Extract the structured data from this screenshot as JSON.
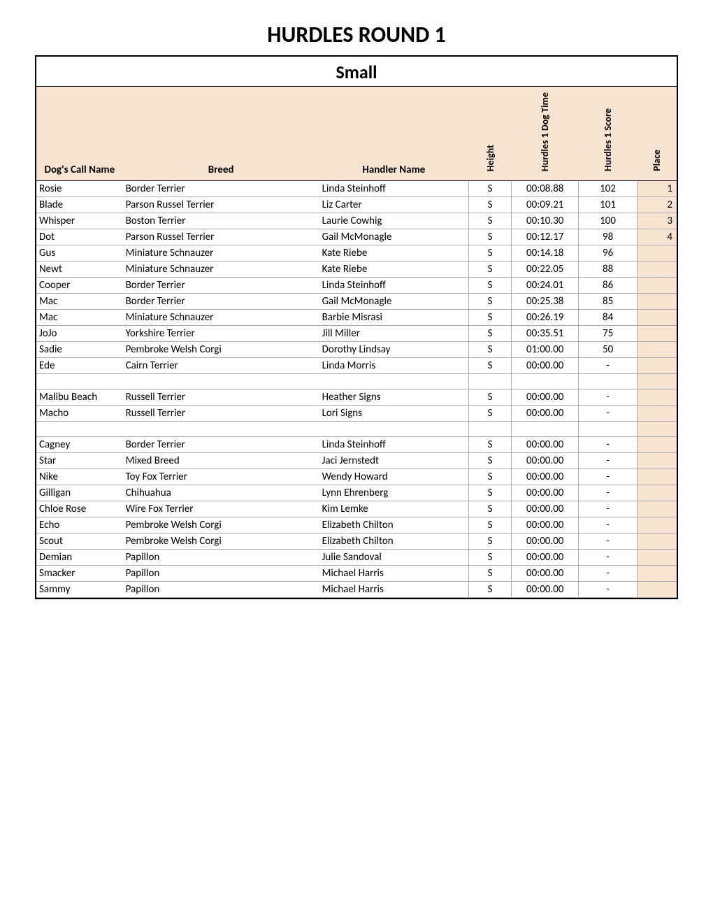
{
  "title": "HURDLES ROUND 1",
  "section": "Small",
  "columns": {
    "name": "Dog's Call Name",
    "breed": "Breed",
    "handler": "Handler Name",
    "height": "Height",
    "time": "Hurdles 1 Dog Time",
    "score": "Hurdles 1 Score",
    "place": "Place"
  },
  "colors": {
    "header_bg": "#f7e3d2",
    "place_bg": "#f7e3d2",
    "border": "#000000",
    "row_border": "#aaaaaa",
    "background": "#ffffff"
  },
  "rows": [
    {
      "name": "Rosie",
      "breed": "Border Terrier",
      "handler": "Linda Steinhoff",
      "height": "S",
      "time": "00:08.88",
      "score": "102",
      "place": "1"
    },
    {
      "name": "Blade",
      "breed": "Parson Russel Terrier",
      "handler": "Liz Carter",
      "height": "S",
      "time": "00:09.21",
      "score": "101",
      "place": "2"
    },
    {
      "name": "Whisper",
      "breed": "Boston Terrier",
      "handler": "Laurie Cowhig",
      "height": "S",
      "time": "00:10.30",
      "score": "100",
      "place": "3"
    },
    {
      "name": "Dot",
      "breed": "Parson Russel Terrier",
      "handler": "Gail McMonagle",
      "height": "S",
      "time": "00:12.17",
      "score": "98",
      "place": "4"
    },
    {
      "name": "Gus",
      "breed": "Miniature Schnauzer",
      "handler": "Kate Riebe",
      "height": "S",
      "time": "00:14.18",
      "score": "96",
      "place": ""
    },
    {
      "name": "Newt",
      "breed": "Miniature Schnauzer",
      "handler": "Kate Riebe",
      "height": "S",
      "time": "00:22.05",
      "score": "88",
      "place": ""
    },
    {
      "name": "Cooper",
      "breed": "Border Terrier",
      "handler": "Linda Steinhoff",
      "height": "S",
      "time": "00:24.01",
      "score": "86",
      "place": ""
    },
    {
      "name": "Mac",
      "breed": "Border Terrier",
      "handler": "Gail McMonagle",
      "height": "S",
      "time": "00:25.38",
      "score": "85",
      "place": ""
    },
    {
      "name": "Mac",
      "breed": "Miniature Schnauzer",
      "handler": "Barbie Misrasi",
      "height": "S",
      "time": "00:26.19",
      "score": "84",
      "place": ""
    },
    {
      "name": "JoJo",
      "breed": "Yorkshire Terrier",
      "handler": "Jill Miller",
      "height": "S",
      "time": "00:35.51",
      "score": "75",
      "place": ""
    },
    {
      "name": "Sadie",
      "breed": "Pembroke Welsh Corgi",
      "handler": "Dorothy Lindsay",
      "height": "S",
      "time": "01:00.00",
      "score": "50",
      "place": ""
    },
    {
      "name": "Ede",
      "breed": "Cairn Terrier",
      "handler": "Linda Morris",
      "height": "S",
      "time": "00:00.00",
      "score": "-",
      "place": ""
    },
    {
      "name": "",
      "breed": "",
      "handler": "",
      "height": "",
      "time": "",
      "score": "",
      "place": ""
    },
    {
      "name": "Malibu Beach",
      "breed": "Russell Terrier",
      "handler": "Heather Signs",
      "height": "S",
      "time": "00:00.00",
      "score": "-",
      "place": ""
    },
    {
      "name": "Macho",
      "breed": "Russell Terrier",
      "handler": "Lori Signs",
      "height": "S",
      "time": "00:00.00",
      "score": "-",
      "place": ""
    },
    {
      "name": "",
      "breed": "",
      "handler": "",
      "height": "",
      "time": "",
      "score": "",
      "place": ""
    },
    {
      "name": "Cagney",
      "breed": "Border Terrier",
      "handler": "Linda Steinhoff",
      "height": "S",
      "time": "00:00.00",
      "score": "-",
      "place": ""
    },
    {
      "name": "Star",
      "breed": "Mixed Breed",
      "handler": "Jaci Jernstedt",
      "height": "S",
      "time": "00:00.00",
      "score": "-",
      "place": ""
    },
    {
      "name": "Nike",
      "breed": "Toy Fox Terrier",
      "handler": "Wendy Howard",
      "height": "S",
      "time": "00:00.00",
      "score": "-",
      "place": ""
    },
    {
      "name": "Gilligan",
      "breed": "Chihuahua",
      "handler": "Lynn Ehrenberg",
      "height": "S",
      "time": "00:00.00",
      "score": "-",
      "place": ""
    },
    {
      "name": "Chloe Rose",
      "breed": "Wire Fox Terrier",
      "handler": "Kim Lemke",
      "height": "S",
      "time": "00:00.00",
      "score": "-",
      "place": ""
    },
    {
      "name": "Echo",
      "breed": "Pembroke Welsh Corgi",
      "handler": "Elizabeth Chilton",
      "height": "S",
      "time": "00:00.00",
      "score": "-",
      "place": ""
    },
    {
      "name": "Scout",
      "breed": "Pembroke Welsh Corgi",
      "handler": "Elizabeth Chilton",
      "height": "S",
      "time": "00:00.00",
      "score": "-",
      "place": ""
    },
    {
      "name": "Demian",
      "breed": "Papillon",
      "handler": "Julie Sandoval",
      "height": "S",
      "time": "00:00.00",
      "score": "-",
      "place": ""
    },
    {
      "name": "Smacker",
      "breed": "Papillon",
      "handler": "Michael Harris",
      "height": "S",
      "time": "00:00.00",
      "score": "-",
      "place": ""
    },
    {
      "name": "Sammy",
      "breed": "Papillon",
      "handler": "Michael Harris",
      "height": "S",
      "time": "00:00.00",
      "score": "-",
      "place": ""
    }
  ]
}
